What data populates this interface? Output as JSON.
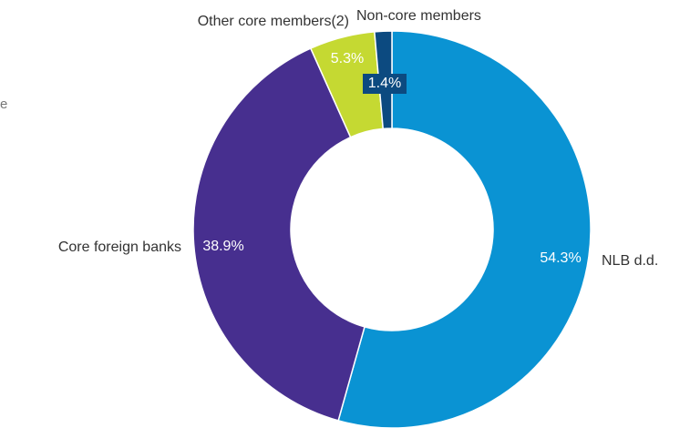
{
  "chart_data": {
    "type": "pie",
    "variant": "donut",
    "title": "",
    "categories": [
      "NLB d.d.",
      "Core foreign banks",
      "Other core members(2)",
      "Non-core members"
    ],
    "values": [
      54.3,
      38.9,
      5.3,
      1.4
    ],
    "data_labels": [
      "54.3%",
      "38.9%",
      "5.3%",
      "1.4%"
    ],
    "colors": [
      "#0a93d3",
      "#472f8f",
      "#c5d932",
      "#0c4a80"
    ],
    "legend": "none"
  },
  "cut_off_text": "e"
}
